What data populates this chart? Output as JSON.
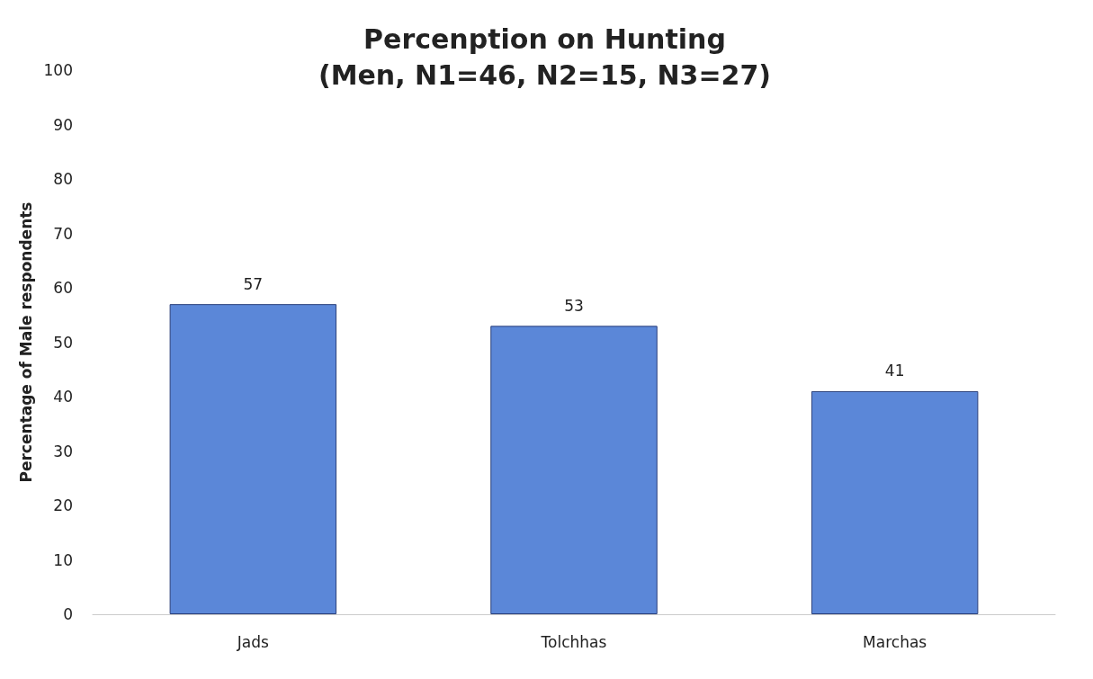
{
  "chart_data": {
    "type": "bar",
    "title": "Percenption on Hunting\n(Men, N1=46, N2=15, N3=27)",
    "ylabel": "Percentage of Male respondents",
    "categories": [
      "Jads",
      "Tolchhas",
      "Marchas"
    ],
    "values": [
      57,
      53,
      41
    ],
    "color": "#5b87d8",
    "ylim": [
      0,
      100
    ],
    "yticks": [
      0,
      10,
      20,
      30,
      40,
      50,
      60,
      70,
      80,
      90,
      100
    ],
    "grid": false,
    "data_labels": true
  }
}
